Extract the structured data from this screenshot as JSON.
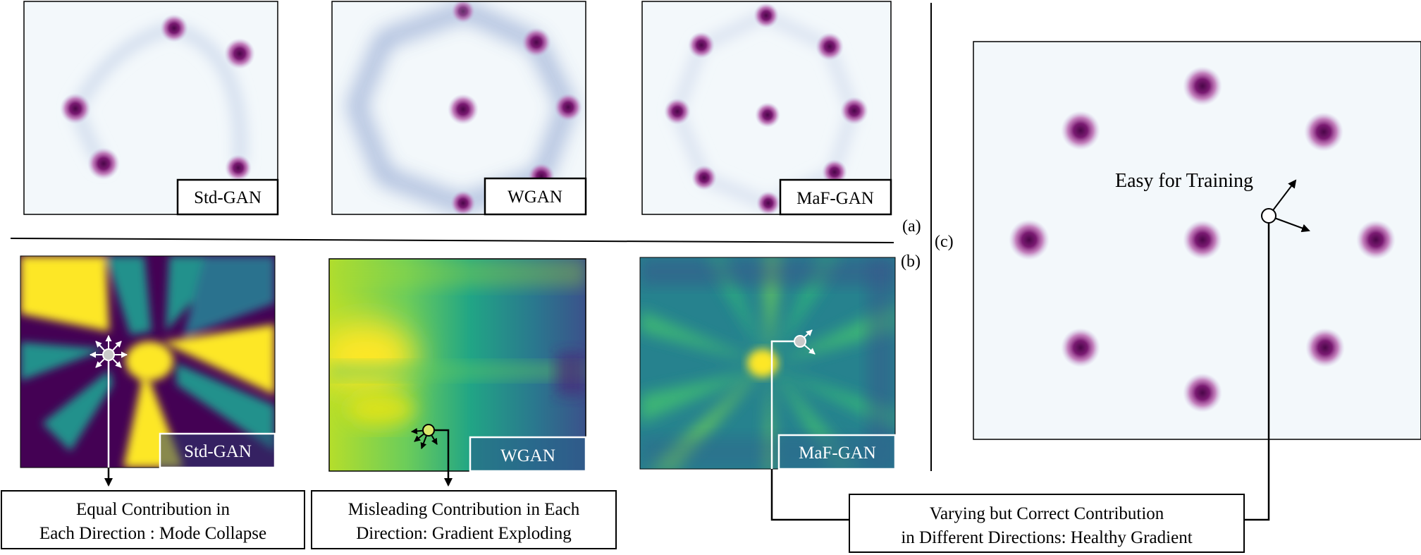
{
  "panels_top": {
    "std_gan": "Std-GAN",
    "wgan": "WGAN",
    "maf_gan": "MaF-GAN"
  },
  "panels_bottom": {
    "std_gan": "Std-GAN",
    "wgan": "WGAN",
    "maf_gan": "MaF-GAN"
  },
  "section_labels": {
    "a": "(a)",
    "b": "(b)",
    "c": "(c)"
  },
  "big_panel": {
    "annotation": "Easy for Training"
  },
  "captions": {
    "std_gan_line1": "Equal Contribution in",
    "std_gan_line2": "Each Direction : Mode Collapse",
    "wgan_line1": "Misleading Contribution in Each",
    "wgan_line2": "Direction: Gradient Exploding",
    "maf_line1": "Varying but Correct Contribution",
    "maf_line2": "in Different Directions: Healthy Gradient"
  },
  "colors": {
    "mode_core": "#5a0a5a",
    "mode_mid": "#9b2b8c",
    "field_bg": "#eef5fa",
    "ring": "#9aaed6",
    "viridis_dark": "#440154",
    "viridis_teal": "#21918c",
    "viridis_yellow": "#fde725"
  }
}
